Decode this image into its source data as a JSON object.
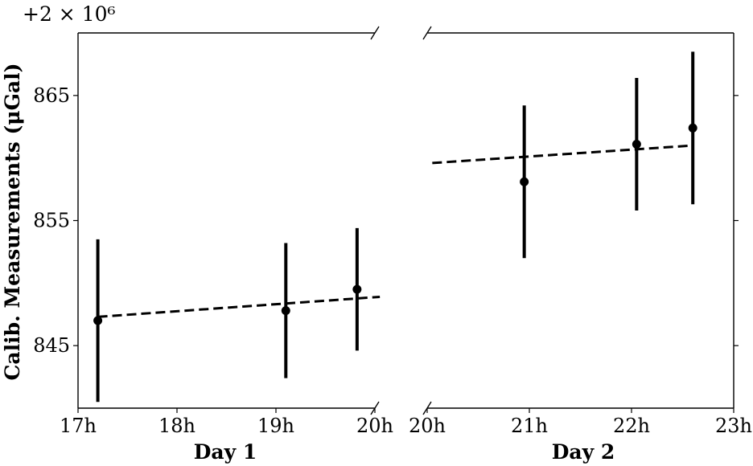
{
  "chart_data": {
    "type": "scatter",
    "ylabel": "Calib. Measurements (μGal)",
    "y_offset_label": "+2 × 10⁶",
    "y_offset_value": 2000000,
    "ylim": [
      840,
      870
    ],
    "yticks": [
      845,
      855,
      865
    ],
    "ytick_labels": [
      "845",
      "855",
      "865"
    ],
    "grid": false,
    "panels": [
      {
        "xlabel": "Day 1",
        "xlim": [
          17.0,
          20.0
        ],
        "xticks": [
          17,
          18,
          19,
          20
        ],
        "xtick_labels": [
          "17h",
          "18h",
          "19h",
          "20h"
        ],
        "points": [
          {
            "x": 17.2,
            "y": 847.0,
            "yerr": 6.5
          },
          {
            "x": 19.1,
            "y": 847.8,
            "yerr": 5.4
          },
          {
            "x": 19.82,
            "y": 849.5,
            "yerr": 4.9
          }
        ],
        "fit": {
          "x": [
            17.2,
            20.05
          ],
          "y": [
            847.3,
            848.9
          ]
        }
      },
      {
        "xlabel": "Day 2",
        "xlim": [
          20.0,
          23.0
        ],
        "xticks": [
          20,
          21,
          22,
          23
        ],
        "xtick_labels": [
          "20h",
          "21h",
          "22h",
          "23h"
        ],
        "points": [
          {
            "x": 20.95,
            "y": 858.1,
            "yerr": 6.1
          },
          {
            "x": 22.05,
            "y": 861.1,
            "yerr": 5.3
          },
          {
            "x": 22.6,
            "y": 862.4,
            "yerr": 6.1
          }
        ],
        "fit": {
          "x": [
            20.05,
            22.6
          ],
          "y": [
            859.6,
            861.0
          ]
        }
      }
    ]
  }
}
